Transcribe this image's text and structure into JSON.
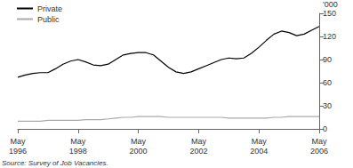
{
  "chart_data": {
    "type": "line",
    "categories": [
      "May 1996",
      null,
      null,
      null,
      null,
      null,
      null,
      null,
      "May 1998",
      null,
      null,
      null,
      null,
      null,
      null,
      null,
      "May 2000",
      null,
      null,
      null,
      null,
      null,
      null,
      null,
      "May 2002",
      null,
      null,
      null,
      null,
      null,
      null,
      null,
      "May 2004",
      null,
      null,
      null,
      null,
      null,
      null,
      null,
      "May 2006"
    ],
    "series": [
      {
        "name": "Private",
        "color": "#000000",
        "values": [
          67,
          70,
          72,
          73,
          73,
          78,
          84,
          88,
          90,
          87,
          83,
          82,
          84,
          90,
          96,
          98,
          99,
          99,
          96,
          88,
          80,
          74,
          72,
          74,
          78,
          82,
          86,
          90,
          92,
          91,
          92,
          98,
          106,
          115,
          123,
          127,
          125,
          121,
          123,
          128,
          133
        ]
      },
      {
        "name": "Public",
        "color": "#aaaaaa",
        "values": [
          10,
          10,
          10,
          10,
          11,
          11,
          11,
          11,
          11,
          12,
          12,
          12,
          13,
          14,
          15,
          15,
          16,
          16,
          16,
          16,
          15,
          15,
          15,
          15,
          15,
          15,
          15,
          15,
          14,
          14,
          14,
          14,
          14,
          14,
          15,
          15,
          16,
          16,
          16,
          16,
          16
        ]
      }
    ],
    "y_label": "'000",
    "ylim": [
      0,
      150
    ],
    "yticks": [
      0,
      30,
      60,
      90,
      120,
      150
    ],
    "grid": false,
    "legend": "top-left",
    "annotation": "Source: Survey of Job Vacancies."
  }
}
